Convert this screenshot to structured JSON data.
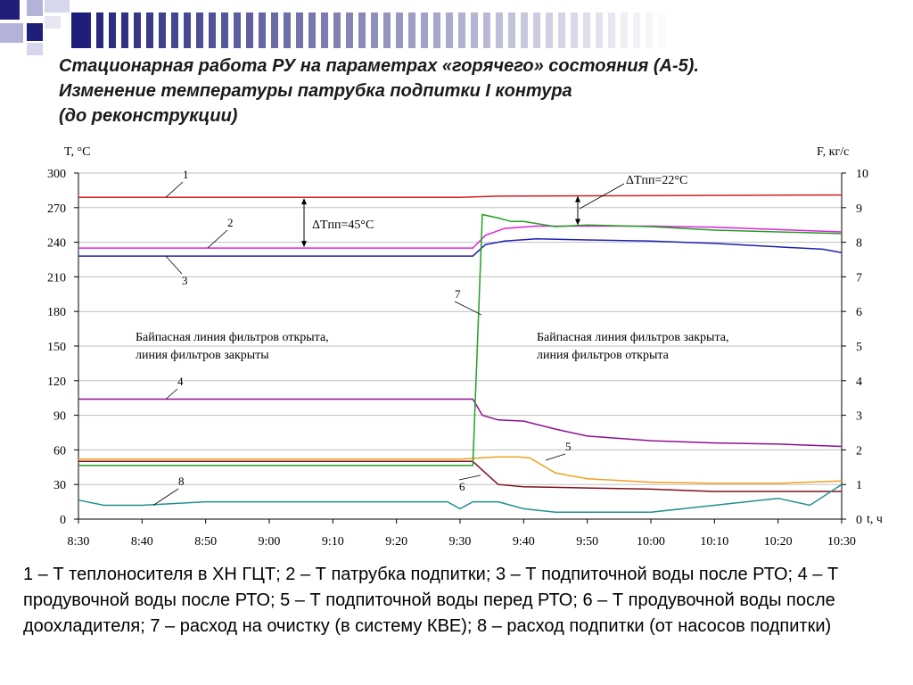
{
  "title_lines": [
    "Стационарная работа РУ на параметрах «горячего» состояния (А-5).",
    "Изменение температуры патрубка подпитки I контура",
    "(до реконструкции)"
  ],
  "legend_text": "1 – Т теплоносителя в ХН ГЦТ; 2 – Т патрубка подпитки; 3 – Т подпиточной воды после РТО; 4 – Т продувочной воды после РТО; 5 – Т подпиточной воды перед РТО; 6 – Т продувочной воды после доохладителя; 7 – расход на очистку (в систему КВЕ); 8  – расход подпитки (от насосов подпитки)",
  "colors": {
    "deco_dark": "#1f1f7a",
    "deco_light": "#b3b3d9",
    "grid": "#c0c0c0"
  },
  "chart_data": {
    "type": "line",
    "ylabel_left": "T, °C",
    "ylabel_right": "F, кг/с",
    "xlabel": "t, ч",
    "x_ticks": [
      "8:30",
      "8:40",
      "8:50",
      "9:00",
      "9:10",
      "9:20",
      "9:30",
      "9:40",
      "9:50",
      "10:00",
      "10:10",
      "10:20",
      "10:30"
    ],
    "y_left_ticks": [
      "300",
      "270",
      "240",
      "210",
      "180",
      "150",
      "120",
      "90",
      "60",
      "30",
      "0"
    ],
    "y_right_ticks": [
      "10",
      "9",
      "8",
      "7",
      "6",
      "5",
      "4",
      "3",
      "2",
      "1",
      "0"
    ],
    "ylim_left": [
      0,
      300
    ],
    "ylim_right": [
      0,
      10
    ],
    "xlim_minutes_from_830": [
      0,
      120
    ],
    "grid": "horizontal",
    "annotations": {
      "dt1": "ΔTпп=45°C",
      "dt2": "ΔTпп=22°C",
      "text_left_1": "Байпасная линия фильтров открыта,",
      "text_left_2": "линия фильтров закрыты",
      "text_right_1": "Байпасная линия фильтров закрыта,",
      "text_right_2": "линия фильтров открыта"
    },
    "series": [
      {
        "name": "1",
        "axis": "left",
        "color": "#d42020",
        "x": [
          0,
          60,
          66,
          120
        ],
        "y": [
          279,
          279,
          280,
          281
        ]
      },
      {
        "name": "2",
        "axis": "left",
        "color": "#e020e0",
        "x": [
          0,
          62,
          64,
          67,
          72,
          80,
          90,
          100,
          110,
          120
        ],
        "y": [
          235,
          235,
          246,
          252,
          254,
          254,
          254,
          253,
          251,
          249
        ]
      },
      {
        "name": "3",
        "axis": "left",
        "color": "#2020b0",
        "x": [
          0,
          62,
          64,
          67,
          72,
          80,
          90,
          100,
          110,
          117,
          120
        ],
        "y": [
          228,
          228,
          238,
          241,
          243,
          242,
          241,
          239,
          236,
          234,
          231
        ]
      },
      {
        "name": "4",
        "axis": "left",
        "color": "#901090",
        "x": [
          0,
          62,
          63.5,
          66,
          70,
          75,
          80,
          85,
          90,
          100,
          110,
          120
        ],
        "y": [
          104,
          104,
          90,
          86,
          85,
          78,
          72,
          70,
          68,
          66,
          65,
          63
        ]
      },
      {
        "name": "5",
        "axis": "left",
        "color": "#f0a020",
        "x": [
          0,
          60,
          63,
          66,
          69,
          71,
          75,
          80,
          90,
          100,
          110,
          120
        ],
        "y": [
          52,
          52,
          53,
          54,
          54,
          53,
          40,
          35,
          32,
          31,
          31,
          33
        ]
      },
      {
        "name": "6",
        "axis": "left",
        "color": "#801020",
        "x": [
          0,
          62,
          64,
          66,
          70,
          80,
          90,
          100,
          110,
          120
        ],
        "y": [
          50,
          50,
          40,
          30,
          28,
          27,
          26,
          24,
          24,
          24
        ]
      },
      {
        "name": "7",
        "axis": "right",
        "color": "#20a020",
        "x": [
          0,
          62,
          63.5,
          66,
          68,
          70,
          75,
          80,
          90,
          100,
          110,
          120
        ],
        "y": [
          1.55,
          1.55,
          8.8,
          8.7,
          8.6,
          8.6,
          8.45,
          8.5,
          8.45,
          8.35,
          8.3,
          8.25
        ]
      },
      {
        "name": "8",
        "axis": "right",
        "color": "#209090",
        "x": [
          0,
          4,
          10,
          20,
          30,
          40,
          58,
          60,
          62,
          66,
          70,
          75,
          90,
          95,
          100,
          110,
          115,
          120
        ],
        "y": [
          0.55,
          0.4,
          0.4,
          0.5,
          0.5,
          0.5,
          0.5,
          0.3,
          0.5,
          0.5,
          0.3,
          0.2,
          0.2,
          0.3,
          0.4,
          0.6,
          0.4,
          1.0
        ]
      }
    ]
  }
}
